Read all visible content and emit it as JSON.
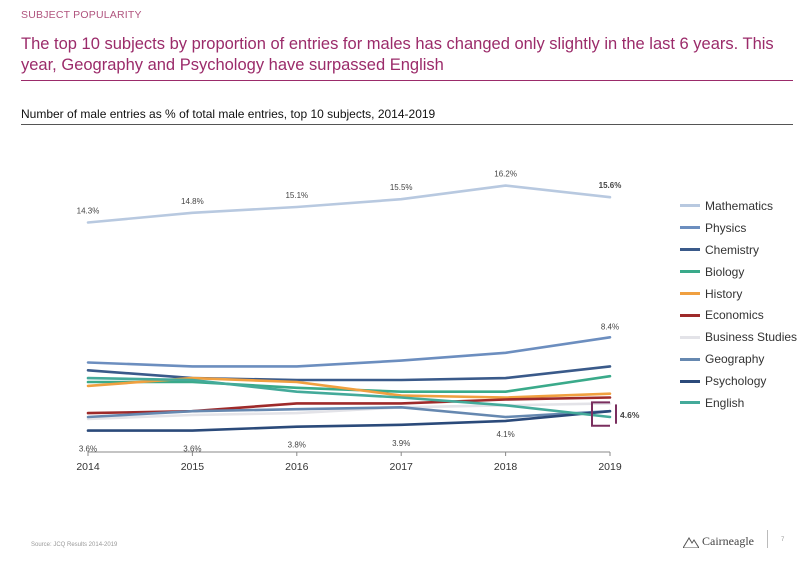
{
  "header": {
    "section_label": "SUBJECT POPULARITY",
    "headline": "The top 10 subjects by proportion of entries for males has changed only slightly in the last 6 years. This year, Geography and Psychology have surpassed English"
  },
  "chart_data": {
    "type": "line",
    "title": "Number of male entries as % of total male entries, top 10 subjects, 2014-2019",
    "xlabel": "",
    "ylabel": "",
    "x": [
      "2014",
      "2015",
      "2016",
      "2017",
      "2018",
      "2019"
    ],
    "ylim": [
      2.5,
      17
    ],
    "grid": false,
    "legend_position": "right",
    "series": [
      {
        "name": "Mathematics",
        "color": "#b8c9e0",
        "values": [
          14.3,
          14.8,
          15.1,
          15.5,
          16.2,
          15.6
        ]
      },
      {
        "name": "Physics",
        "color": "#6c8ebf",
        "values": [
          7.1,
          6.9,
          6.9,
          7.2,
          7.6,
          8.4
        ]
      },
      {
        "name": "Chemistry",
        "color": "#3a5a8a",
        "values": [
          6.7,
          6.3,
          6.2,
          6.2,
          6.3,
          6.9
        ]
      },
      {
        "name": "Biology",
        "color": "#3aaa8a",
        "values": [
          6.1,
          6.1,
          5.8,
          5.6,
          5.6,
          6.4
        ]
      },
      {
        "name": "History",
        "color": "#f0a040",
        "values": [
          5.9,
          6.3,
          6.1,
          5.4,
          5.3,
          5.5
        ]
      },
      {
        "name": "Economics",
        "color": "#9e2a2a",
        "values": [
          4.5,
          4.6,
          5.0,
          5.0,
          5.2,
          5.3
        ]
      },
      {
        "name": "Business Studies",
        "color": "#e3e3e8",
        "values": [
          4.2,
          4.4,
          4.5,
          4.8,
          4.9,
          5.0
        ]
      },
      {
        "name": "Geography",
        "color": "#6688b0",
        "values": [
          4.3,
          4.6,
          4.7,
          4.8,
          4.3,
          4.6
        ]
      },
      {
        "name": "Psychology",
        "color": "#2b4a7a",
        "values": [
          3.6,
          3.6,
          3.8,
          3.9,
          4.1,
          4.6
        ]
      },
      {
        "name": "English",
        "color": "#44aa9a",
        "values": [
          6.3,
          6.2,
          5.6,
          5.3,
          4.9,
          4.3
        ]
      }
    ],
    "data_labels": [
      {
        "text": "14.3%",
        "series": "Mathematics",
        "x": "2014",
        "y": 14.3
      },
      {
        "text": "14.8%",
        "series": "Mathematics",
        "x": "2015",
        "y": 14.8
      },
      {
        "text": "15.1%",
        "series": "Mathematics",
        "x": "2016",
        "y": 15.1
      },
      {
        "text": "15.5%",
        "series": "Mathematics",
        "x": "2017",
        "y": 15.5
      },
      {
        "text": "16.2%",
        "series": "Mathematics",
        "x": "2018",
        "y": 16.2
      },
      {
        "text": "15.6%",
        "series": "Mathematics",
        "x": "2019",
        "y": 15.6
      },
      {
        "text": "8.4%",
        "series": "Physics",
        "x": "2019",
        "y": 8.4
      },
      {
        "text": "3.6%",
        "series": "Psychology",
        "x": "2014",
        "y": 3.6
      },
      {
        "text": "3.6%",
        "series": "Psychology",
        "x": "2015",
        "y": 3.6
      },
      {
        "text": "3.8%",
        "series": "Psychology",
        "x": "2016",
        "y": 3.8
      },
      {
        "text": "3.9%",
        "series": "Psychology",
        "x": "2017",
        "y": 3.9
      },
      {
        "text": "4.1%",
        "series": "Psychology",
        "x": "2018",
        "y": 4.1
      },
      {
        "text": "4.6%",
        "series": "Psychology",
        "x": "2019",
        "y": 4.6
      }
    ],
    "highlight_box_color": "#7a2e5e"
  },
  "footer": {
    "source": "Source: JCQ Results 2014-2019",
    "logo_text": "Cairneagle",
    "page_number": "7"
  }
}
